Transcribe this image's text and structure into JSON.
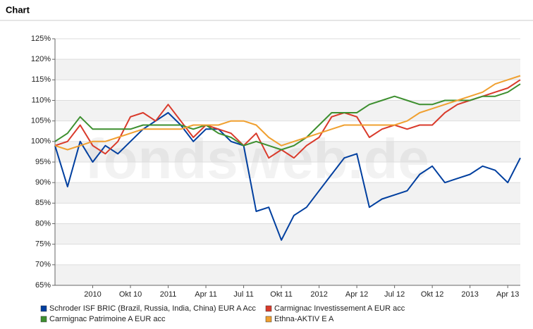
{
  "header": {
    "title": "Chart"
  },
  "chart_data": {
    "type": "line",
    "watermark": "fondsweb.de",
    "x": [
      "2010-04",
      "2010-05",
      "2010-06",
      "2010-07",
      "2010-08",
      "2010-09",
      "2010-10",
      "2010-11",
      "2010-12",
      "2011-01",
      "2011-02",
      "2011-03",
      "2011-04",
      "2011-05",
      "2011-06",
      "2011-07",
      "2011-08",
      "2011-09",
      "2011-10",
      "2011-11",
      "2011-12",
      "2012-01",
      "2012-02",
      "2012-03",
      "2012-04",
      "2012-05",
      "2012-06",
      "2012-07",
      "2012-08",
      "2012-09",
      "2012-10",
      "2012-11",
      "2012-12",
      "2013-01",
      "2013-02",
      "2013-03",
      "2013-04",
      "2013-05"
    ],
    "series": [
      {
        "name": "Schroder ISF BRIC (Brazil, Russia, India, China) EUR A Acc",
        "color": "#003f9f",
        "values": [
          99,
          89,
          100,
          95,
          99,
          97,
          100,
          103,
          105,
          107,
          104,
          100,
          103,
          103,
          100,
          99,
          83,
          84,
          76,
          82,
          84,
          88,
          92,
          96,
          97,
          84,
          86,
          87,
          88,
          92,
          94,
          90,
          91,
          92,
          94,
          93,
          90,
          96
        ]
      },
      {
        "name": "Carmignac Investissement A EUR acc",
        "color": "#d93a2b",
        "values": [
          99,
          100,
          104,
          99,
          97,
          100,
          106,
          107,
          105,
          109,
          105,
          101,
          104,
          103,
          102,
          99,
          102,
          96,
          98,
          96,
          99,
          101,
          106,
          107,
          106,
          101,
          103,
          104,
          103,
          104,
          104,
          107,
          109,
          110,
          111,
          112,
          113,
          115
        ]
      },
      {
        "name": "Carmignac Patrimoine A EUR acc",
        "color": "#3d8f2f",
        "values": [
          100,
          102,
          106,
          103,
          103,
          103,
          103,
          104,
          104,
          104,
          104,
          103,
          104,
          102,
          101,
          99,
          100,
          99,
          98,
          99,
          101,
          104,
          107,
          107,
          107,
          109,
          110,
          111,
          110,
          109,
          109,
          110,
          110,
          110,
          111,
          111,
          112,
          114
        ]
      },
      {
        "name": "Ethna-AKTIV E A",
        "color": "#f0a030",
        "values": [
          99,
          98,
          99,
          100,
          100,
          101,
          102,
          103,
          103,
          103,
          103,
          104,
          104,
          104,
          105,
          105,
          104,
          101,
          99,
          100,
          101,
          102,
          103,
          104,
          104,
          104,
          104,
          104,
          105,
          107,
          108,
          109,
          110,
          111,
          112,
          114,
          115,
          116
        ]
      }
    ],
    "xlim": [
      "2010-04",
      "2013-05"
    ],
    "xticks": [
      {
        "value": "2010-07",
        "label": "2010"
      },
      {
        "value": "2010-10",
        "label": "Okt 10"
      },
      {
        "value": "2011-01",
        "label": "2011"
      },
      {
        "value": "2011-04",
        "label": "Apr 11"
      },
      {
        "value": "2011-07",
        "label": "Jul 11"
      },
      {
        "value": "2011-10",
        "label": "Okt 11"
      },
      {
        "value": "2012-01",
        "label": "2012"
      },
      {
        "value": "2012-04",
        "label": "Apr 12"
      },
      {
        "value": "2012-07",
        "label": "Jul 12"
      },
      {
        "value": "2012-10",
        "label": "Okt 12"
      },
      {
        "value": "2013-01",
        "label": "2013"
      },
      {
        "value": "2013-04",
        "label": "Apr 13"
      }
    ],
    "ylim": [
      65,
      125
    ],
    "yticks": [
      {
        "value": 65,
        "label": "65%"
      },
      {
        "value": 70,
        "label": "70%"
      },
      {
        "value": 75,
        "label": "75%"
      },
      {
        "value": 80,
        "label": "80%"
      },
      {
        "value": 85,
        "label": "85%"
      },
      {
        "value": 90,
        "label": "90%"
      },
      {
        "value": 95,
        "label": "95%"
      },
      {
        "value": 100,
        "label": "100%"
      },
      {
        "value": 105,
        "label": "105%"
      },
      {
        "value": 110,
        "label": "110%"
      },
      {
        "value": 115,
        "label": "115%"
      },
      {
        "value": 120,
        "label": "120%"
      },
      {
        "value": 125,
        "label": "125%"
      }
    ],
    "grid": true
  }
}
